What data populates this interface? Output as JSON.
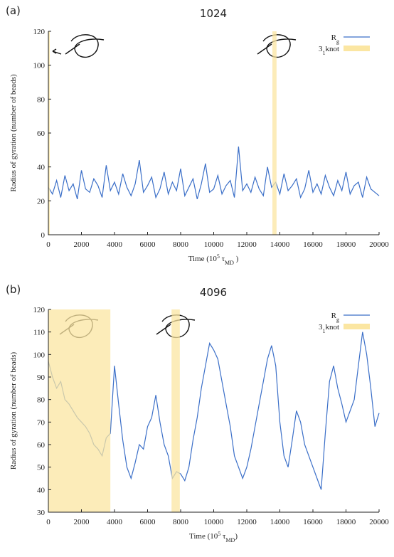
{
  "chart_data": [
    {
      "type": "line",
      "panel_label": "(a)",
      "title": "1024",
      "y_label": "Radius of gyration (number of beads)",
      "x_label": [
        "Time (10",
        "5",
        " τ",
        "MD",
        " )"
      ],
      "xlim": [
        0,
        20000
      ],
      "xticks": [
        0,
        2000,
        4000,
        6000,
        8000,
        10000,
        12000,
        14000,
        16000,
        18000,
        20000
      ],
      "ylim": [
        0,
        120
      ],
      "yticks": [
        0,
        20,
        40,
        60,
        80,
        100,
        120
      ],
      "x": [
        0,
        250,
        500,
        750,
        1000,
        1250,
        1500,
        1750,
        2000,
        2250,
        2500,
        2750,
        3000,
        3250,
        3500,
        3750,
        4000,
        4250,
        4500,
        4750,
        5000,
        5250,
        5500,
        5750,
        6000,
        6250,
        6500,
        6750,
        7000,
        7250,
        7500,
        7750,
        8000,
        8250,
        8500,
        8750,
        9000,
        9250,
        9500,
        9750,
        10000,
        10250,
        10500,
        10750,
        11000,
        11250,
        11500,
        11750,
        12000,
        12250,
        12500,
        12750,
        13000,
        13250,
        13500,
        13750,
        14000,
        14250,
        14500,
        14750,
        15000,
        15250,
        15500,
        15750,
        16000,
        16250,
        16500,
        16750,
        17000,
        17250,
        17500,
        17750,
        18000,
        18250,
        18500,
        18750,
        19000,
        19250,
        19500,
        19750,
        20000
      ],
      "series": [
        {
          "name": [
            "R",
            "g"
          ],
          "color": "#3b6fc8",
          "values": [
            28,
            24,
            32,
            22,
            35,
            26,
            30,
            21,
            38,
            27,
            25,
            33,
            29,
            22,
            41,
            26,
            31,
            24,
            36,
            28,
            23,
            30,
            44,
            25,
            29,
            34,
            22,
            27,
            37,
            24,
            31,
            26,
            39,
            23,
            28,
            33,
            21,
            30,
            42,
            25,
            27,
            35,
            24,
            29,
            32,
            22,
            52,
            26,
            30,
            25,
            34,
            27,
            23,
            40,
            28,
            31,
            24,
            36,
            26,
            29,
            33,
            22,
            27,
            38,
            25,
            30,
            24,
            35,
            28,
            23,
            32,
            26,
            37,
            24,
            29,
            31,
            22,
            34,
            27,
            25,
            23
          ]
        }
      ],
      "bands": {
        "name": [
          "3",
          "1",
          "knot"
        ],
        "color": "#fbe6a2",
        "ranges": [
          [
            0,
            40
          ],
          [
            13550,
            13800
          ]
        ]
      },
      "legend": "upper right"
    },
    {
      "type": "line",
      "panel_label": "(b)",
      "title": "4096",
      "y_label": "Radius of gyration (number of beads)",
      "x_label": [
        "Time (10",
        "5",
        " τ",
        "MD",
        ")"
      ],
      "xlim": [
        0,
        20000
      ],
      "xticks": [
        0,
        2000,
        4000,
        6000,
        8000,
        10000,
        12000,
        14000,
        16000,
        18000,
        20000
      ],
      "ylim": [
        30,
        120
      ],
      "yticks": [
        30,
        40,
        50,
        60,
        70,
        80,
        90,
        100,
        110,
        120
      ],
      "x": [
        0,
        250,
        500,
        750,
        1000,
        1250,
        1500,
        1750,
        2000,
        2250,
        2500,
        2750,
        3000,
        3250,
        3500,
        3750,
        4000,
        4250,
        4500,
        4750,
        5000,
        5250,
        5500,
        5750,
        6000,
        6250,
        6500,
        6750,
        7000,
        7250,
        7500,
        7750,
        8000,
        8250,
        8500,
        8750,
        9000,
        9250,
        9500,
        9750,
        10000,
        10250,
        10500,
        10750,
        11000,
        11250,
        11500,
        11750,
        12000,
        12250,
        12500,
        12750,
        13000,
        13250,
        13500,
        13750,
        14000,
        14250,
        14500,
        14750,
        15000,
        15250,
        15500,
        15750,
        16000,
        16250,
        16500,
        16750,
        17000,
        17250,
        17500,
        17750,
        18000,
        18250,
        18500,
        18750,
        19000,
        19250,
        19500,
        19750,
        20000
      ],
      "series": [
        {
          "name": [
            "R",
            "g"
          ],
          "color": "#3b6fc8",
          "values": [
            97,
            90,
            85,
            88,
            80,
            78,
            75,
            72,
            70,
            68,
            65,
            60,
            58,
            55,
            63,
            65,
            95,
            78,
            62,
            50,
            45,
            52,
            60,
            58,
            68,
            72,
            82,
            70,
            60,
            55,
            45,
            48,
            47,
            44,
            50,
            62,
            72,
            85,
            95,
            105,
            102,
            98,
            88,
            78,
            68,
            55,
            50,
            45,
            50,
            58,
            68,
            78,
            88,
            98,
            104,
            95,
            70,
            55,
            50,
            62,
            75,
            70,
            60,
            55,
            50,
            45,
            40,
            65,
            88,
            95,
            85,
            78,
            70,
            75,
            80,
            95,
            110,
            100,
            85,
            68,
            74
          ]
        }
      ],
      "bands": {
        "name": [
          "3",
          "1",
          "knot"
        ],
        "color": "#fbe6a2",
        "ranges": [
          [
            0,
            3750
          ],
          [
            7450,
            7950
          ]
        ]
      },
      "legend": "upper right"
    }
  ]
}
